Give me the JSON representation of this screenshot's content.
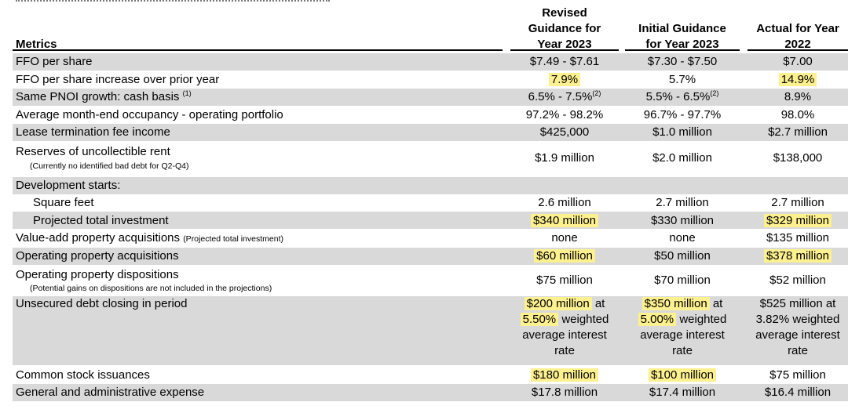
{
  "headers": {
    "metrics": "Metrics",
    "revised": [
      "Revised",
      "Guidance for",
      "Year 2023"
    ],
    "initial": [
      "Initial Guidance",
      "for Year 2023"
    ],
    "actual": [
      "Actual for Year",
      "2022"
    ]
  },
  "rows": {
    "ffo": {
      "label": "FFO per share",
      "revised": "$7.49 - $7.61",
      "initial": "$7.30 - $7.50",
      "actual": "$7.00"
    },
    "ffo_increase": {
      "label": "FFO per share increase over prior year",
      "revised": "7.9%",
      "initial": "5.7%",
      "actual": "14.9%"
    },
    "pnoi": {
      "label": "Same PNOI growth: cash basis ",
      "label_sup": "(1)",
      "revised": "6.5% - 7.5%",
      "revised_sup": "(2)",
      "initial": "5.5% - 6.5%",
      "initial_sup": "(2)",
      "actual": "8.9%"
    },
    "occupancy": {
      "label": "Average month-end occupancy - operating portfolio",
      "revised": "97.2% - 98.2%",
      "initial": "96.7% - 97.7%",
      "actual": "98.0%"
    },
    "lease_fee": {
      "label": "Lease termination fee income",
      "revised": "$425,000",
      "initial": "$1.0 million",
      "actual": "$2.7 million"
    },
    "reserves": {
      "label": "Reserves of uncollectible rent",
      "note": "(Currently no identified bad debt for Q2-Q4)",
      "revised": "$1.9 million",
      "initial": "$2.0 million",
      "actual": "$138,000"
    },
    "dev_starts": {
      "label": "Development starts:"
    },
    "sqft": {
      "label": "Square feet",
      "revised": "2.6 million",
      "initial": "2.7 million",
      "actual": "2.7 million"
    },
    "projected": {
      "label": "Projected total investment",
      "revised": "$340 million",
      "initial": "$330 million",
      "actual": "$329 million"
    },
    "value_add": {
      "label": "Value-add property acquisitions ",
      "note": "(Projected total investment)",
      "revised": "none",
      "initial": "none",
      "actual": "$135 million"
    },
    "op_acq": {
      "label": "Operating property acquisitions",
      "revised": "$60 million",
      "initial": "$50 million",
      "actual": "$378 million"
    },
    "op_disp": {
      "label": "Operating property dispositions",
      "note": "(Potential gains on dispositions are not included in the projections)",
      "revised": "$75 million",
      "initial": "$70 million",
      "actual": "$52 million"
    },
    "debt": {
      "label": "Unsecured debt closing in period",
      "revised": {
        "amount": "$200 million",
        "at": " at",
        "rate": "5.50%",
        "rest1": " weighted",
        "rest2": "average interest",
        "rest3": "rate"
      },
      "initial": {
        "amount": "$350 million",
        "at": " at",
        "rate": "5.00%",
        "rest1": " weighted",
        "rest2": "average interest",
        "rest3": "rate"
      },
      "actual": {
        "line1": "$525 million at",
        "line2": "3.82% weighted",
        "line3": "average interest",
        "line4": "rate"
      }
    },
    "stock": {
      "label": "Common stock issuances",
      "revised": "$180 million",
      "initial": "$100 million",
      "actual": "$75 million"
    },
    "gna": {
      "label": "General and administrative expense",
      "revised": "$17.8 million",
      "initial": "$17.4 million",
      "actual": "$16.4 million"
    }
  },
  "colors": {
    "band": "#d9d9d9",
    "highlight": "#fdf08f"
  }
}
